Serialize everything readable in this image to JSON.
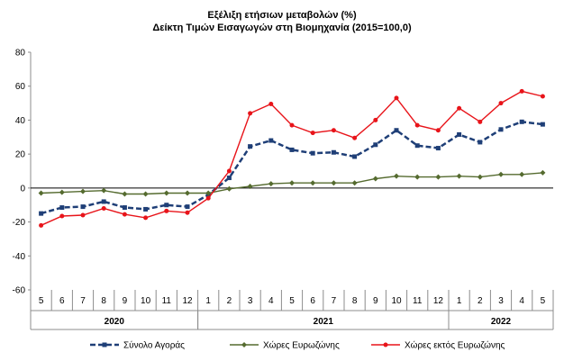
{
  "chart_data": {
    "type": "line",
    "title": "Εξέλιξη ετήσιων μεταβολών (%)",
    "subtitle": "Δείκτη Τιμών Εισαγωγών στη Βιομηχανία (2015=100,0)",
    "categories": [
      "5",
      "6",
      "7",
      "8",
      "9",
      "10",
      "11",
      "12",
      "1",
      "2",
      "3",
      "4",
      "5",
      "6",
      "7",
      "8",
      "9",
      "10",
      "11",
      "12",
      "1",
      "2",
      "3",
      "4",
      "5"
    ],
    "years": [
      {
        "label": "2020",
        "from": 0,
        "to": 7
      },
      {
        "label": "2021",
        "from": 8,
        "to": 19
      },
      {
        "label": "2022",
        "from": 20,
        "to": 24
      }
    ],
    "ylim": [
      -60,
      80
    ],
    "yticks": [
      80,
      60,
      40,
      20,
      0,
      -20,
      -40,
      -60
    ],
    "series": [
      {
        "name": "Σύνολο Αγοράς",
        "color": "#1f3f77",
        "style": "dashed-square",
        "values": [
          -15,
          -11.5,
          -11,
          -8,
          -11.5,
          -12.5,
          -10,
          -11,
          -4,
          6,
          24.5,
          28,
          22.5,
          20.5,
          21,
          18.5,
          25.5,
          34,
          25,
          23.5,
          31.5,
          27,
          34.5,
          39,
          37.5
        ]
      },
      {
        "name": "Χώρες Ευρωζώνης",
        "color": "#556b2f",
        "style": "solid-diamond",
        "values": [
          -3,
          -2.5,
          -2,
          -1.5,
          -3.5,
          -3.5,
          -3,
          -3,
          -3,
          -0.5,
          1,
          2.5,
          3,
          3,
          3,
          3,
          5.5,
          7,
          6.5,
          6.5,
          7,
          6.5,
          8,
          8,
          9
        ]
      },
      {
        "name": "Χώρες εκτός Ευρωζώνης",
        "color": "#e8141a",
        "style": "solid-dot",
        "values": [
          -22,
          -16.5,
          -16,
          -12,
          -15.5,
          -17.5,
          -13.5,
          -14.5,
          -6,
          10,
          44,
          49.5,
          37,
          32.5,
          34,
          29.5,
          40,
          53,
          37,
          34,
          47,
          39,
          50,
          57,
          54
        ]
      }
    ],
    "grid": false,
    "legend_position": "bottom"
  }
}
